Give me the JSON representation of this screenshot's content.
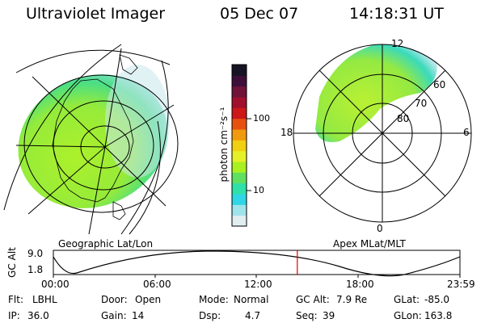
{
  "header": {
    "instrument": "Ultraviolet Imager",
    "date": "05 Dec 07",
    "time": "14:18:31 UT"
  },
  "left_map": {
    "label": "Geographic Lat/Lon"
  },
  "right_map": {
    "label": "Apex  MLat/MLT",
    "mlt_labels": [
      "12",
      "18",
      "6",
      "0"
    ],
    "lat_labels": [
      "60",
      "70",
      "80"
    ]
  },
  "colorbar": {
    "unit_label": "photon cm⁻²s⁻¹",
    "ticks": [
      "100",
      "10"
    ],
    "colors": [
      "#e0eef2",
      "#9fe4ea",
      "#2fd6e6",
      "#2fe0a8",
      "#60e060",
      "#a8f020",
      "#e6f028",
      "#f0d010",
      "#f09a10",
      "#e85010",
      "#cc1818",
      "#a0102c",
      "#70123a",
      "#3e0e3a",
      "#161424"
    ]
  },
  "altitude_plot": {
    "ylabel": "GC Alt",
    "y_ticks": [
      "9.0",
      "1.8"
    ],
    "x_ticks": [
      "00:00",
      "06:00",
      "12:00",
      "18:00",
      "23:59"
    ],
    "current_time_fraction": 0.6
  },
  "info": {
    "row1": [
      {
        "label": "Flt:",
        "value": "LBHL"
      },
      {
        "label": "Door:",
        "value": "Open"
      },
      {
        "label": "Mode:",
        "value": "Normal"
      },
      {
        "label": "GC Alt:",
        "value": "7.9 Re"
      },
      {
        "label": "GLat:",
        "value": "-85.0"
      }
    ],
    "row2": [
      {
        "label": "IP:",
        "value": "36.0"
      },
      {
        "label": "Gain:",
        "value": "14"
      },
      {
        "label": "Dsp:",
        "value": "4.7"
      },
      {
        "label": "Seq:",
        "value": "39"
      },
      {
        "label": "GLon:",
        "value": "163.8"
      }
    ]
  }
}
